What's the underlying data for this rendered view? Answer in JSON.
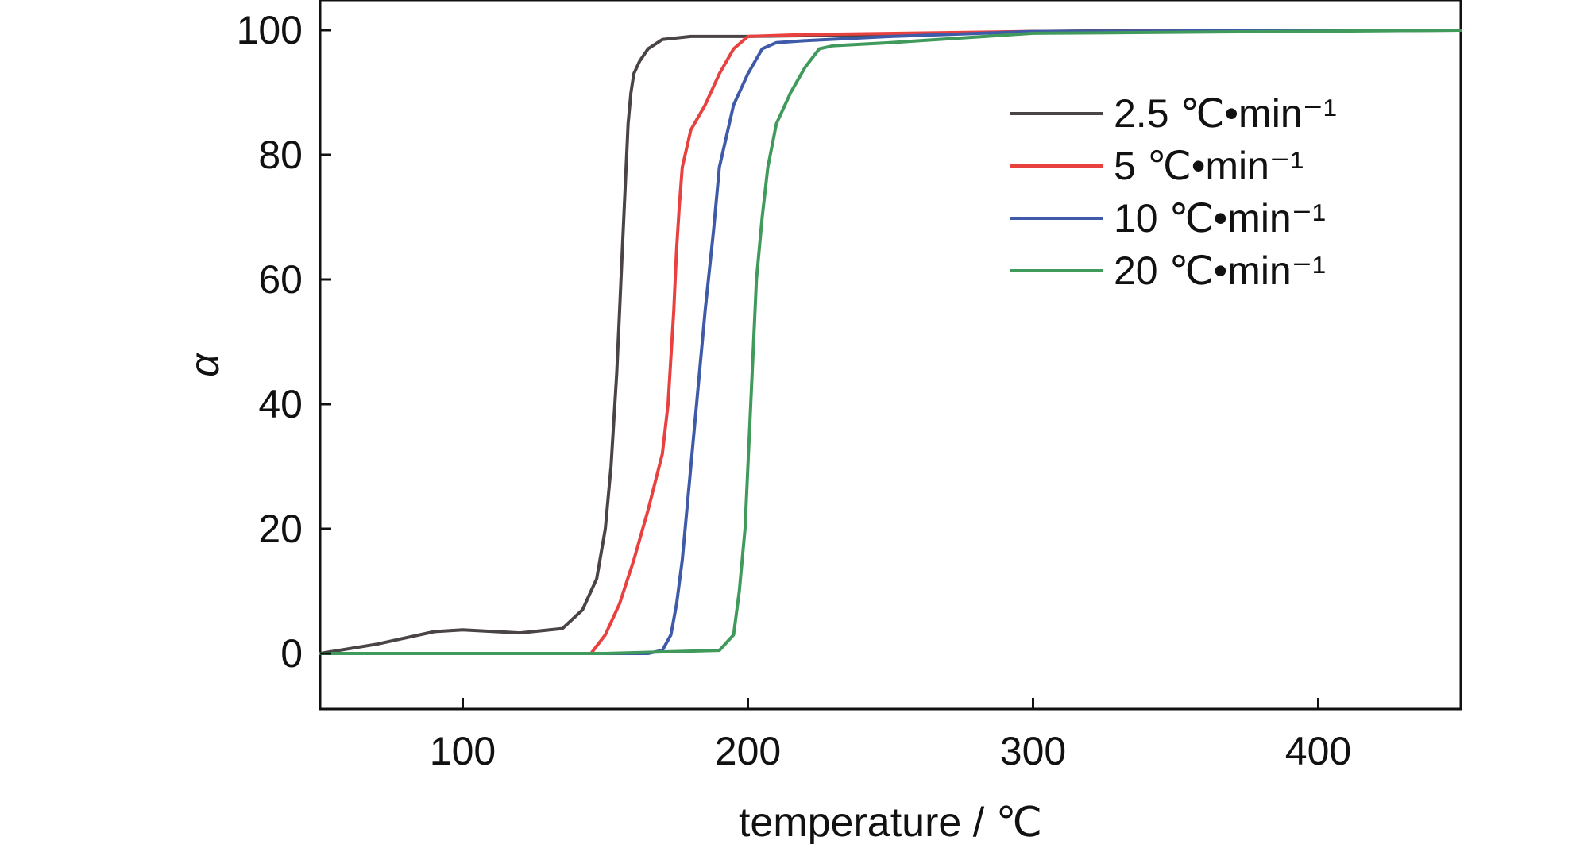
{
  "chart_data": {
    "type": "line",
    "xlabel": "temperature / ℃",
    "ylabel": "α",
    "xlim": [
      50,
      450
    ],
    "ylim": [
      -9,
      100
    ],
    "xticks": [
      100,
      200,
      300,
      400
    ],
    "yticks": [
      0,
      20,
      40,
      60,
      80,
      100
    ],
    "xtick_labels": [
      "100",
      "200",
      "300",
      "400"
    ],
    "ytick_labels": [
      "0",
      "20",
      "40",
      "60",
      "80",
      "100"
    ],
    "legend_position": "top-right",
    "grid": false,
    "series": [
      {
        "name": "2.5 ℃•min⁻¹",
        "color": "#4a4444",
        "x": [
          50,
          70,
          90,
          100,
          120,
          135,
          142,
          147,
          150,
          152,
          154,
          155,
          156,
          157,
          158,
          159,
          160,
          162,
          165,
          170,
          180,
          200,
          250,
          300,
          350,
          450
        ],
        "y": [
          0,
          1.5,
          3.5,
          3.8,
          3.3,
          4,
          7,
          12,
          20,
          30,
          45,
          55,
          65,
          75,
          85,
          90,
          93,
          95,
          97,
          98.5,
          99,
          99,
          99.3,
          99.8,
          100,
          100
        ]
      },
      {
        "name": "5 ℃•min⁻¹",
        "color": "#e8413f",
        "x": [
          50,
          100,
          145,
          150,
          155,
          160,
          165,
          170,
          172,
          174,
          175,
          176,
          177,
          178,
          180,
          185,
          190,
          195,
          200,
          220,
          300,
          450
        ],
        "y": [
          0,
          0,
          0,
          3,
          8,
          15,
          23,
          32,
          40,
          55,
          65,
          72,
          78,
          80,
          84,
          88,
          93,
          97,
          99,
          99.3,
          99.8,
          100
        ]
      },
      {
        "name": "10 ℃•min⁻¹",
        "color": "#3e5aa8",
        "x": [
          50,
          100,
          150,
          165,
          170,
          173,
          175,
          177,
          179,
          181,
          183,
          185,
          188,
          190,
          195,
          200,
          205,
          210,
          220,
          250,
          300,
          450
        ],
        "y": [
          0,
          0,
          0,
          0,
          0.5,
          3,
          8,
          15,
          25,
          35,
          45,
          55,
          68,
          78,
          88,
          93,
          97,
          98,
          98.3,
          99,
          99.8,
          100
        ]
      },
      {
        "name": "20 ℃•min⁻¹",
        "color": "#3f9a5b",
        "x": [
          50,
          100,
          150,
          190,
          195,
          197,
          199,
          200,
          201,
          202,
          203,
          205,
          207,
          210,
          215,
          220,
          225,
          230,
          250,
          300,
          450
        ],
        "y": [
          0,
          0,
          0,
          0.5,
          3,
          10,
          20,
          30,
          40,
          50,
          60,
          70,
          78,
          85,
          90,
          94,
          97,
          97.5,
          98,
          99.5,
          100
        ]
      }
    ]
  }
}
